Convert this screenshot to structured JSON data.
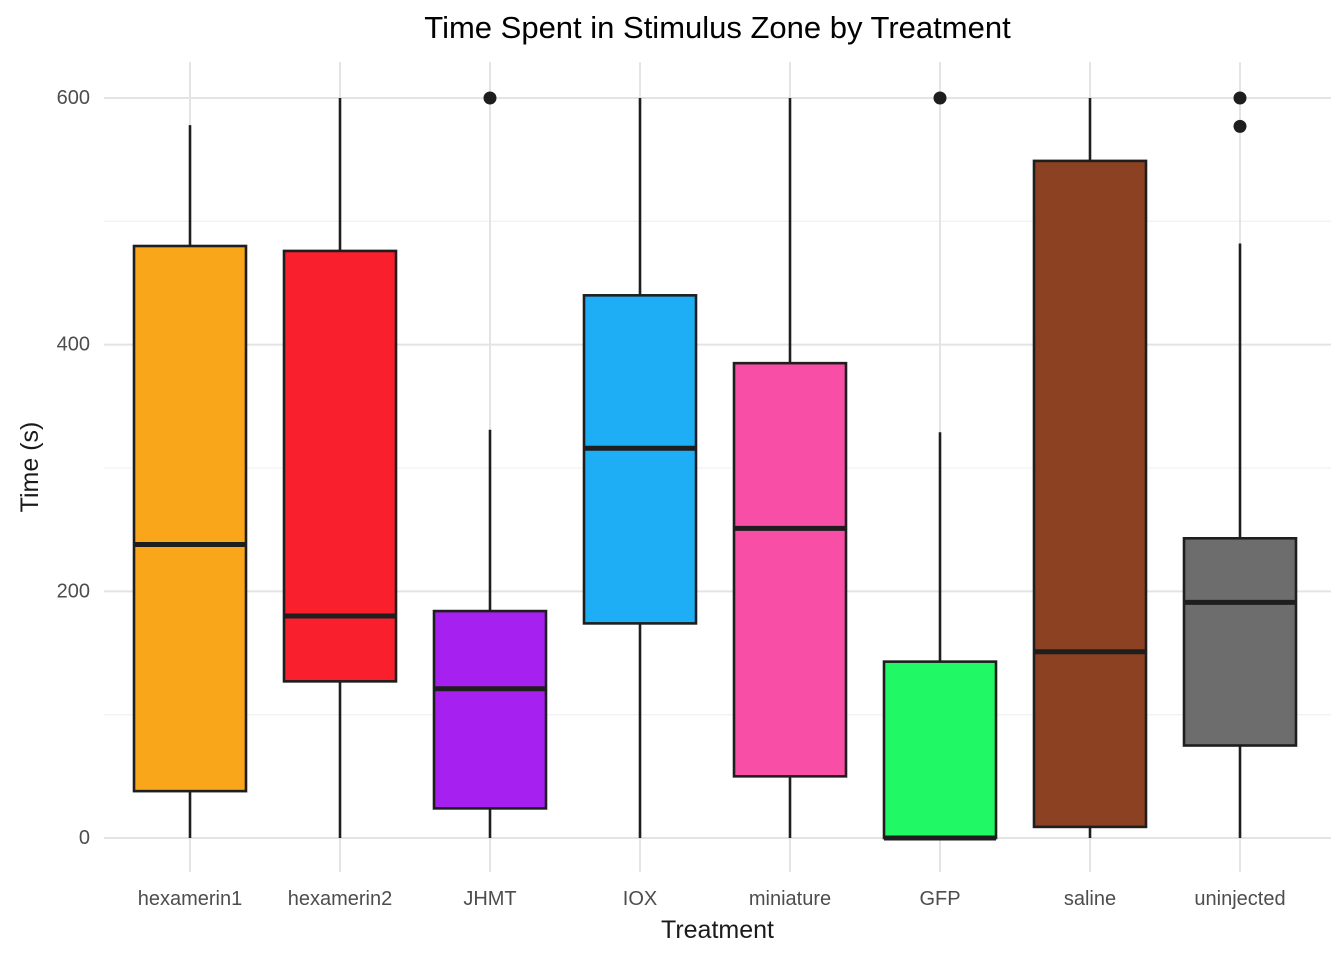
{
  "chart_data": {
    "type": "box",
    "title": "Time Spent in Stimulus Zone by Treatment",
    "xlabel": "Treatment",
    "ylabel": "Time (s)",
    "ylim": [
      0,
      600
    ],
    "grid": "on",
    "legend": "none",
    "y_major_ticks": [
      0,
      200,
      400,
      600
    ],
    "y_tick_labels": [
      "0",
      "200",
      "400",
      "600"
    ],
    "y_minor_gridlines": [
      100,
      300,
      500
    ],
    "categories": [
      "hexamerin1",
      "hexamerin2",
      "JHMT",
      "IOX",
      "miniature",
      "GFP",
      "saline",
      "uninjected"
    ],
    "series": [
      {
        "name": "hexamerin1",
        "color": "#F9A61A",
        "min": 0,
        "q1": 38,
        "median": 238,
        "q3": 480,
        "max": 578,
        "outliers": []
      },
      {
        "name": "hexamerin2",
        "color": "#F91F2C",
        "min": 0,
        "q1": 127,
        "median": 180,
        "q3": 476,
        "max": 600,
        "outliers": []
      },
      {
        "name": "JHMT",
        "color": "#A620F0",
        "min": 0,
        "q1": 24,
        "median": 121,
        "q3": 184,
        "max": 331,
        "outliers": [
          600
        ]
      },
      {
        "name": "IOX",
        "color": "#1EAEF6",
        "min": 0,
        "q1": 174,
        "median": 316,
        "q3": 440,
        "max": 600,
        "outliers": []
      },
      {
        "name": "miniature",
        "color": "#F84EA5",
        "min": 0,
        "q1": 50,
        "median": 251,
        "q3": 385,
        "max": 600,
        "outliers": []
      },
      {
        "name": "GFP",
        "color": "#20F965",
        "min": 0,
        "q1": 0,
        "median": 0,
        "q3": 143,
        "max": 329,
        "outliers": [
          600
        ]
      },
      {
        "name": "saline",
        "color": "#8C4122",
        "min": 0,
        "q1": 9,
        "median": 151,
        "q3": 549,
        "max": 600,
        "outliers": []
      },
      {
        "name": "uninjected",
        "color": "#6D6D6D",
        "min": 0,
        "q1": 75,
        "median": 191,
        "q3": 243,
        "max": 482,
        "outliers": [
          600,
          577
        ]
      }
    ],
    "style": {
      "box_border": "#1E1E1E",
      "median": "#1E1E1E",
      "whisker": "#1E1E1E",
      "outlier": "#1E1E1E",
      "grid_major": "#E4E4E4",
      "grid_minor": "#F2F2F2",
      "background": "#FFFFFF",
      "title_color": "#000000",
      "axis_title_color": "#1A1A1A",
      "tick_label_color": "#4D4D4D"
    }
  }
}
